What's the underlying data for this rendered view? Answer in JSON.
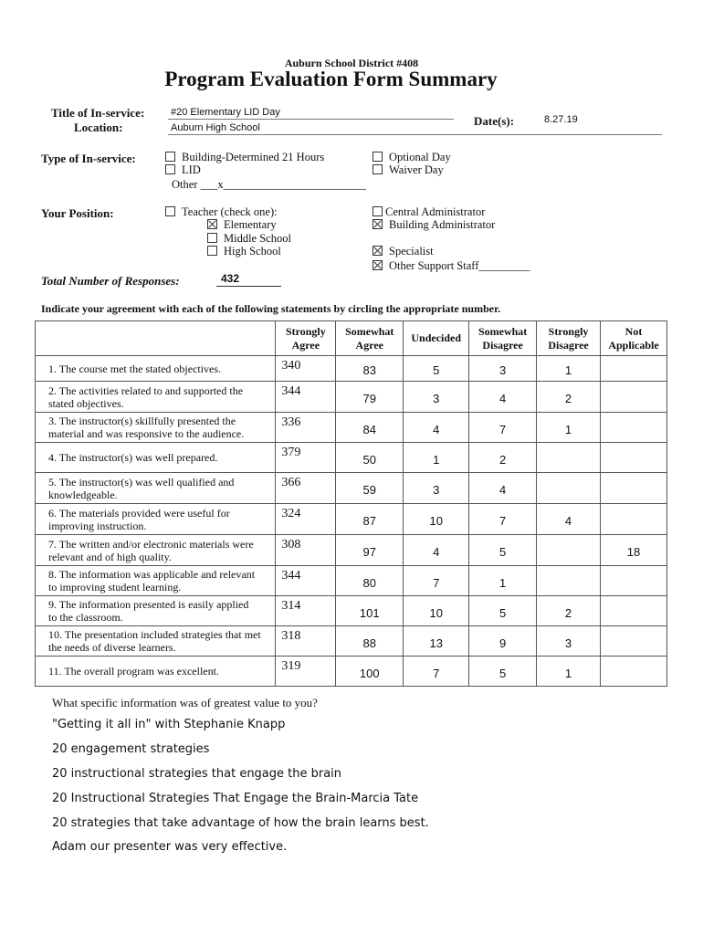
{
  "header": {
    "district": "Auburn School District #408",
    "title": "Program Evaluation Form Summary"
  },
  "fields": {
    "title_label": "Title of In-service:",
    "title_value": "#20 Elementary LID Day",
    "location_label": "Location:",
    "location_value": "Auburn High School",
    "date_label": "Date(s):",
    "date_value": "8.27.19"
  },
  "type": {
    "label": "Type of In-service:",
    "options": [
      {
        "label": "Building-Determined 21 Hours",
        "checked": false
      },
      {
        "label": "LID",
        "checked": false
      },
      {
        "label": "Optional Day",
        "checked": false
      },
      {
        "label": "Waiver Day",
        "checked": false
      }
    ],
    "other": "Other ___x_________________________"
  },
  "position": {
    "label": "Your Position:",
    "options": [
      {
        "label": "Teacher (check one):",
        "checked": false
      },
      {
        "label": "Elementary",
        "checked": true
      },
      {
        "label": "Middle School",
        "checked": false
      },
      {
        "label": "High School",
        "checked": false
      },
      {
        "label": "Central Administrator",
        "checked": false
      },
      {
        "label": "Building Administrator",
        "checked": true
      },
      {
        "label": "Specialist",
        "checked": true
      },
      {
        "label": "Other  Support Staff_________",
        "checked": true
      }
    ]
  },
  "responses": {
    "label": "Total Number of Responses:",
    "value": "432"
  },
  "instructions": "Indicate your agreement with each of the following statements by circling the appropriate number.",
  "table": {
    "headers": [
      [
        "Strongly",
        "Agree"
      ],
      [
        "Somewhat",
        "Agree"
      ],
      [
        "Undecided"
      ],
      [
        "Somewhat",
        "Disagree"
      ],
      [
        "Strongly",
        "Disagree"
      ],
      [
        "Not",
        "Applicable"
      ]
    ],
    "rows": [
      {
        "q": [
          "1. The course met the stated objectives."
        ],
        "v": [
          "340",
          "83",
          "5",
          "3",
          "1",
          ""
        ]
      },
      {
        "q": [
          "2. The activities related to and supported the",
          "stated objectives."
        ],
        "v": [
          "344",
          "79",
          "3",
          "4",
          "2",
          ""
        ]
      },
      {
        "q": [
          "3. The instructor(s) skillfully presented the",
          "material and was responsive to the audience."
        ],
        "v": [
          "336",
          "84",
          "4",
          "7",
          "1",
          ""
        ]
      },
      {
        "q": [
          "4. The instructor(s) was well prepared."
        ],
        "v": [
          "379",
          "50",
          "1",
          "2",
          "",
          ""
        ]
      },
      {
        "q": [
          "5. The instructor(s) was well qualified and",
          "knowledgeable."
        ],
        "v": [
          "366",
          "59",
          "3",
          "4",
          "",
          ""
        ]
      },
      {
        "q": [
          "6. The materials provided were useful for",
          "improving instruction."
        ],
        "v": [
          "324",
          "87",
          "10",
          "7",
          "4",
          ""
        ]
      },
      {
        "q": [
          "7. The written and/or electronic materials were",
          "relevant and of high quality."
        ],
        "v": [
          "308",
          "97",
          "4",
          "5",
          "",
          "18"
        ]
      },
      {
        "q": [
          "8. The information was applicable and relevant",
          "to improving student learning."
        ],
        "v": [
          "344",
          "80",
          "7",
          "1",
          "",
          ""
        ]
      },
      {
        "q": [
          "9. The information presented is easily applied",
          "to the classroom."
        ],
        "v": [
          "314",
          "101",
          "10",
          "5",
          "2",
          ""
        ]
      },
      {
        "q": [
          "10. The presentation included strategies that met",
          "the needs of diverse learners."
        ],
        "v": [
          "318",
          "88",
          "13",
          "9",
          "3",
          ""
        ]
      },
      {
        "q": [
          "11. The overall program was excellent."
        ],
        "v": [
          "319",
          "100",
          "7",
          "5",
          "1",
          ""
        ]
      }
    ]
  },
  "question": "What specific information was of greatest value to you?",
  "answers": [
    "\"Getting it all in\" with Stephanie Knapp",
    "20 engagement strategies",
    "20 instructional strategies that engage the brain",
    "20 Instructional Strategies That Engage the Brain-Marcia Tate",
    "20 strategies that take advantage of how the brain learns best.",
    "Adam our presenter was very effective."
  ]
}
